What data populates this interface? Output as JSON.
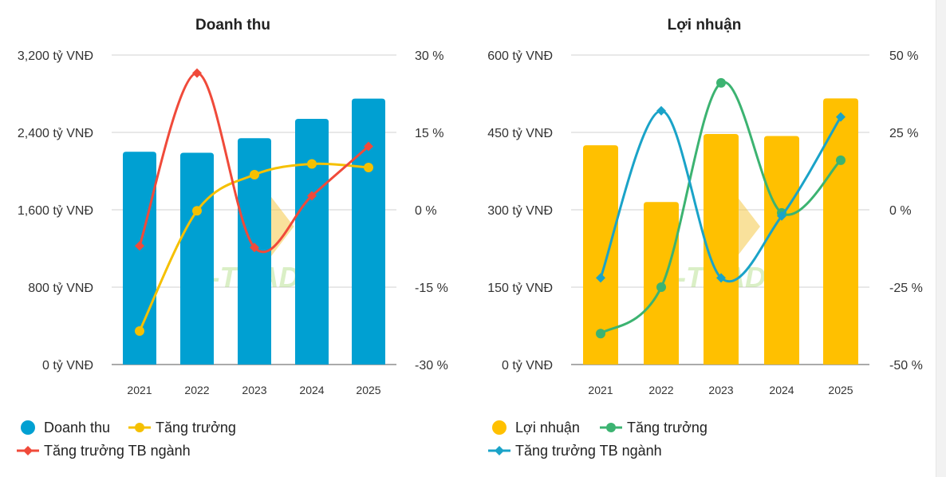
{
  "colors": {
    "revenue_bar": "#00a0d2",
    "revenue_growth": "#f5c000",
    "revenue_industry": "#f04a3a",
    "profit_bar": "#ffc000",
    "profit_growth": "#3cb371",
    "profit_industry": "#1aa3c8",
    "grid": "#d0d0d0",
    "axis": "#333333"
  },
  "chart_data": [
    {
      "type": "bar",
      "title": "Doanh thu",
      "categories": [
        "2021",
        "2022",
        "2023",
        "2024",
        "2025"
      ],
      "left_axis": {
        "ticks": [
          "3,200 tỷ VNĐ",
          "2,400 tỷ VNĐ",
          "1,600 tỷ VNĐ",
          "800 tỷ VNĐ",
          "0 tỷ VNĐ"
        ],
        "ylim": [
          0,
          3200
        ]
      },
      "right_axis": {
        "ticks": [
          "30 %",
          "15 %",
          "0 %",
          "-15 %",
          "-30 %"
        ],
        "ylim": [
          -30,
          30
        ]
      },
      "series": [
        {
          "name": "Doanh thu",
          "kind": "bar",
          "axis": "left",
          "values": [
            2200,
            2190,
            2340,
            2540,
            2750
          ]
        },
        {
          "name": "Tăng trưởng",
          "kind": "line",
          "axis": "right",
          "values": [
            -23.5,
            -0.2,
            6.8,
            8.9,
            8.2
          ]
        },
        {
          "name": "Tăng trưởng TB ngành",
          "kind": "line",
          "axis": "right",
          "values": [
            -7,
            26.5,
            -7.3,
            2.7,
            12.3
          ]
        }
      ],
      "grid": true,
      "legend_position": "bottom-left"
    },
    {
      "type": "bar",
      "title": "Lợi nhuận",
      "categories": [
        "2021",
        "2022",
        "2023",
        "2024",
        "2025"
      ],
      "left_axis": {
        "ticks": [
          "600 tỷ VNĐ",
          "450 tỷ VNĐ",
          "300 tỷ VNĐ",
          "150 tỷ VNĐ",
          "0 tỷ VNĐ"
        ],
        "ylim": [
          0,
          600
        ]
      },
      "right_axis": {
        "ticks": [
          "50 %",
          "25 %",
          "0 %",
          "-25 %",
          "-50 %"
        ],
        "ylim": [
          -50,
          50
        ]
      },
      "series": [
        {
          "name": "Lợi nhuận",
          "kind": "bar",
          "axis": "left",
          "values": [
            425,
            315,
            447,
            443,
            516
          ]
        },
        {
          "name": "Tăng trưởng",
          "kind": "line",
          "axis": "right",
          "values": [
            -40,
            -25,
            41,
            -1,
            16
          ]
        },
        {
          "name": "Tăng trưởng TB ngành",
          "kind": "line",
          "axis": "right",
          "values": [
            -22,
            32,
            -22,
            -2,
            30
          ]
        }
      ],
      "grid": true,
      "legend_position": "bottom-left"
    }
  ]
}
